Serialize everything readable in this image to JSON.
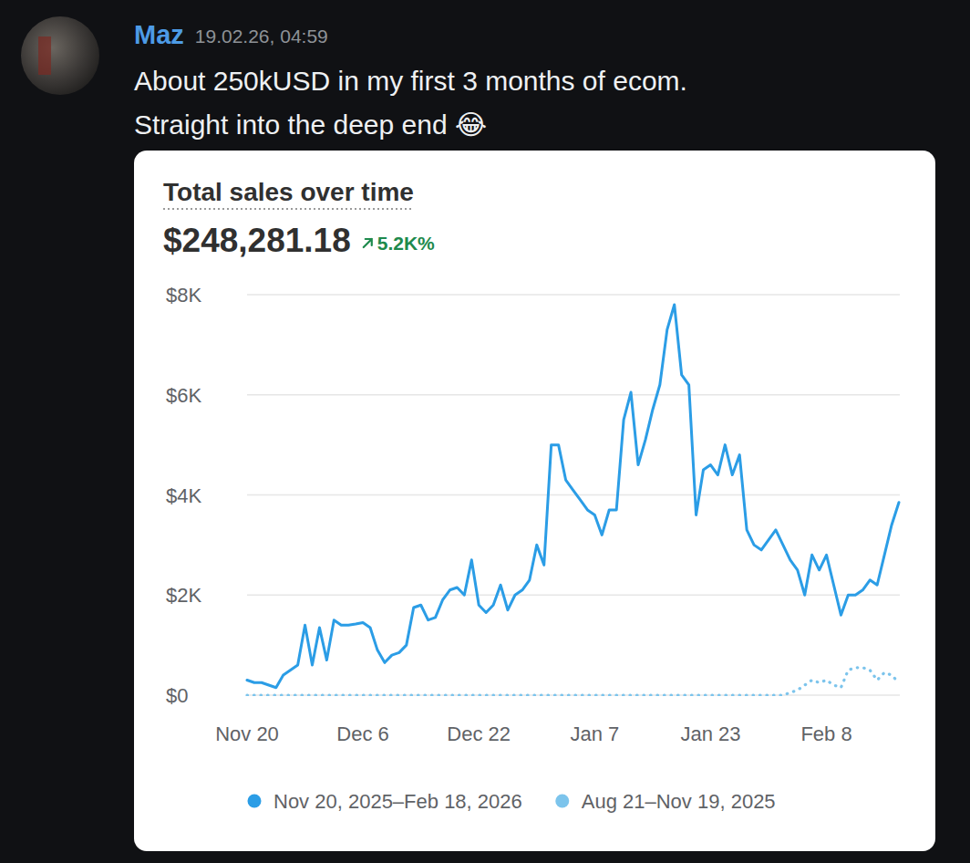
{
  "message": {
    "author": "Maz",
    "timestamp": "19.02.26, 04:59",
    "lines": [
      "About 250kUSD in my first 3 months of ecom.",
      "Straight into the deep end 😂"
    ]
  },
  "chart_data": {
    "type": "line",
    "title": "Total sales over time",
    "subtitle": "$248,281.18",
    "annotation": "5.2K%",
    "categories": [
      "Nov 20",
      null,
      null,
      null,
      null,
      null,
      null,
      null,
      null,
      null,
      null,
      null,
      null,
      null,
      null,
      null,
      "Dec 6",
      null,
      null,
      null,
      null,
      null,
      null,
      null,
      null,
      null,
      null,
      null,
      null,
      null,
      null,
      null,
      "Dec 22",
      null,
      null,
      null,
      null,
      null,
      null,
      null,
      null,
      null,
      null,
      null,
      null,
      null,
      null,
      null,
      "Jan 7",
      null,
      null,
      null,
      null,
      null,
      null,
      null,
      null,
      null,
      null,
      null,
      null,
      null,
      null,
      null,
      "Jan 23",
      null,
      null,
      null,
      null,
      null,
      null,
      null,
      null,
      null,
      null,
      null,
      null,
      null,
      null,
      null,
      "Feb 8",
      null,
      null,
      null,
      null,
      null,
      null,
      null,
      null,
      null,
      null
    ],
    "series": [
      {
        "name": "Nov 20, 2025–Feb 18, 2026",
        "color": "#2b9de6",
        "line_style": "solid",
        "values": [
          300,
          250,
          250,
          200,
          150,
          400,
          500,
          600,
          1400,
          600,
          1350,
          700,
          1500,
          1400,
          1400,
          1420,
          1450,
          1350,
          900,
          650,
          800,
          850,
          1000,
          1750,
          1800,
          1500,
          1550,
          1900,
          2100,
          2150,
          2000,
          2700,
          1800,
          1650,
          1800,
          2200,
          1700,
          2000,
          2100,
          2300,
          3000,
          2600,
          5000,
          5000,
          4300,
          4100,
          3900,
          3700,
          3600,
          3200,
          3700,
          3700,
          5500,
          6050,
          4600,
          5100,
          5700,
          6200,
          7300,
          7800,
          6400,
          6200,
          3600,
          4500,
          4600,
          4400,
          5000,
          4400,
          4800,
          3300,
          3000,
          2900,
          3100,
          3300,
          3000,
          2700,
          2500,
          2000,
          2800,
          2500,
          2800,
          2200,
          1600,
          2000,
          2000,
          2100,
          2300,
          2200,
          2800,
          3400,
          3850
        ]
      },
      {
        "name": "Aug 21–Nov 19, 2025",
        "color": "#7cc4ec",
        "line_style": "dotted",
        "values": [
          0,
          0,
          0,
          0,
          0,
          0,
          0,
          0,
          0,
          0,
          0,
          0,
          0,
          0,
          0,
          0,
          0,
          0,
          0,
          0,
          0,
          0,
          0,
          0,
          0,
          0,
          0,
          0,
          0,
          0,
          0,
          0,
          0,
          0,
          0,
          0,
          0,
          0,
          0,
          0,
          0,
          0,
          0,
          0,
          0,
          0,
          0,
          0,
          0,
          0,
          0,
          0,
          0,
          0,
          0,
          0,
          0,
          0,
          0,
          0,
          0,
          0,
          0,
          0,
          0,
          0,
          0,
          0,
          0,
          0,
          0,
          0,
          0,
          0,
          0,
          50,
          100,
          200,
          300,
          250,
          300,
          200,
          150,
          500,
          550,
          550,
          500,
          300,
          450,
          400,
          250
        ]
      }
    ],
    "ylim": [
      0,
      8000
    ],
    "yticks": [
      {
        "value": 0,
        "label": "$0"
      },
      {
        "value": 2000,
        "label": "$2K"
      },
      {
        "value": 4000,
        "label": "$4K"
      },
      {
        "value": 6000,
        "label": "$6K"
      },
      {
        "value": 8000,
        "label": "$8K"
      }
    ],
    "grid": true,
    "legend": "bottom"
  }
}
